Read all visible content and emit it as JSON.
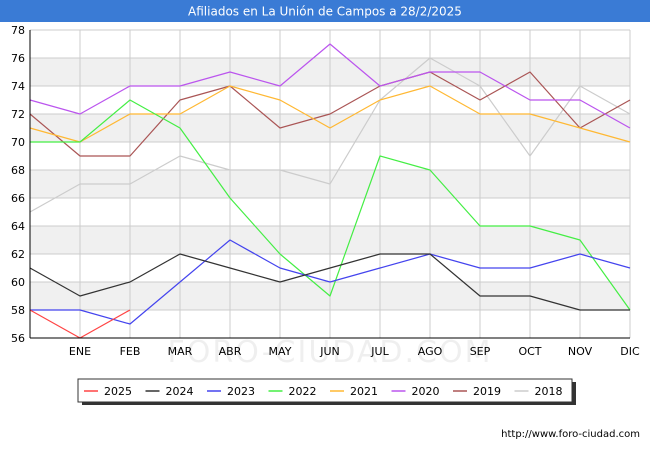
{
  "chart_data": {
    "type": "line",
    "title": "Afiliados en La Unión de Campos a 28/2/2025",
    "categories": [
      "",
      "ENE",
      "FEB",
      "MAR",
      "ABR",
      "MAY",
      "JUN",
      "JUL",
      "AGO",
      "SEP",
      "OCT",
      "NOV",
      "DIC"
    ],
    "ylim": [
      56,
      78
    ],
    "yticks": [
      56,
      58,
      60,
      62,
      64,
      66,
      68,
      70,
      72,
      74,
      76,
      78
    ],
    "grid": true,
    "legend_position": "bottom",
    "series": [
      {
        "name": "2025",
        "color": "#ff4444",
        "values": [
          58,
          56,
          58,
          null,
          null,
          null,
          null,
          null,
          null,
          null,
          null,
          null,
          null
        ]
      },
      {
        "name": "2024",
        "color": "#333333",
        "values": [
          61,
          59,
          60,
          62,
          61,
          60,
          61,
          62,
          62,
          59,
          59,
          58,
          58
        ]
      },
      {
        "name": "2023",
        "color": "#4444ee",
        "values": [
          58,
          58,
          57,
          60,
          63,
          61,
          60,
          61,
          62,
          61,
          61,
          62,
          61
        ]
      },
      {
        "name": "2022",
        "color": "#44ee44",
        "values": [
          70,
          70,
          73,
          71,
          66,
          62,
          59,
          69,
          68,
          64,
          64,
          63,
          58
        ]
      },
      {
        "name": "2021",
        "color": "#ffb833",
        "values": [
          71,
          70,
          72,
          72,
          74,
          73,
          71,
          73,
          74,
          72,
          72,
          71,
          70
        ]
      },
      {
        "name": "2020",
        "color": "#bb55ee",
        "values": [
          73,
          72,
          74,
          74,
          75,
          74,
          77,
          74,
          75,
          75,
          73,
          73,
          71
        ]
      },
      {
        "name": "2019",
        "color": "#aa5555",
        "values": [
          72,
          69,
          69,
          73,
          74,
          71,
          72,
          74,
          75,
          73,
          75,
          71,
          73
        ]
      },
      {
        "name": "2018",
        "color": "#cccccc",
        "values": [
          65,
          67,
          67,
          69,
          68,
          68,
          67,
          73,
          76,
          74,
          69,
          74,
          72
        ]
      }
    ]
  },
  "footer": {
    "url": "http://www.foro-ciudad.com",
    "watermark": "FORO-CIUDAD.COM"
  },
  "colors": {
    "title_bar": "#3a7bd5",
    "band": "#f0f0f0",
    "grid": "#cccccc"
  }
}
